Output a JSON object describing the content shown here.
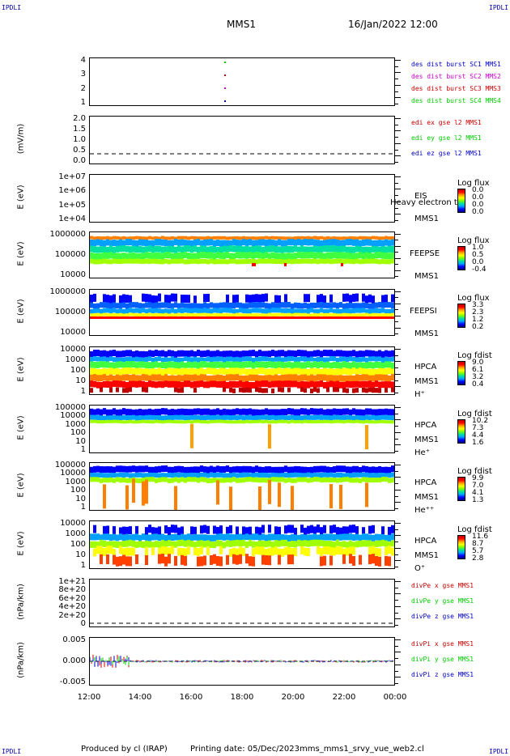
{
  "corners": {
    "tl": "IPDLI",
    "tr": "IPDLI",
    "bl": "IPDLI",
    "br": "IPDLI"
  },
  "header": {
    "spacecraft": "MMS1",
    "date": "16/Jan/2022 12:00"
  },
  "x_ticks": [
    "12:00",
    "14:00",
    "16:00",
    "18:00",
    "20:00",
    "22:00",
    "00:00"
  ],
  "panels": [
    {
      "id": "burst",
      "ylabel": "",
      "ticks": [
        "4",
        "3",
        "2",
        "1"
      ],
      "legend": [
        {
          "text": "des dist burst SC1 MMS1",
          "color": "#0000cc"
        },
        {
          "text": "des dist burst SC2 MMS2",
          "color": "#cc00cc"
        },
        {
          "text": "des dist burst SC3 MMS3",
          "color": "#cc0000"
        },
        {
          "text": "des dist burst SC4 MMS4",
          "color": "#00cc00"
        }
      ]
    },
    {
      "id": "edi",
      "ylabel": "(mV/m)",
      "ticks": [
        "2.0",
        "1.5",
        "1.0",
        "0.5",
        "0.0"
      ],
      "legend": [
        {
          "text": "edi ex gse l2 MMS1",
          "color": "#cc0000"
        },
        {
          "text": "edi ey gse l2 MMS1",
          "color": "#00cc00"
        },
        {
          "text": "edi ez gse l2 MMS1",
          "color": "#0000cc"
        }
      ]
    },
    {
      "id": "eis",
      "ylabel": "E (eV)",
      "ticks": [
        "1e+07",
        "1e+06",
        "1e+05",
        "1e+04"
      ],
      "inst": [
        "EIS",
        "MMS1"
      ],
      "overlay": "Heavy electron to",
      "cb": {
        "title": "Log flux",
        "vals": [
          "0.0",
          "0.0",
          "0.0",
          "0.0"
        ]
      }
    },
    {
      "id": "feepse",
      "ylabel": "E (eV)",
      "ticks": [
        "1000000",
        "100000",
        "10000"
      ],
      "inst": [
        "FEEPSE",
        "MMS1"
      ],
      "cb": {
        "title": "Log flux",
        "vals": [
          "1.0",
          "0.5",
          "0.0",
          "-0.4"
        ]
      }
    },
    {
      "id": "feepsi",
      "ylabel": "E (eV)",
      "ticks": [
        "1000000",
        "100000",
        "10000"
      ],
      "inst": [
        "FEEPSI",
        "MMS1"
      ],
      "cb": {
        "title": "Log flux",
        "vals": [
          "3.3",
          "2.3",
          "1.2",
          "0.2"
        ]
      }
    },
    {
      "id": "hpca-h",
      "ylabel": "E (eV)",
      "ticks": [
        "10000",
        "1000",
        "100",
        "10",
        "1"
      ],
      "inst": [
        "HPCA",
        "MMS1",
        "H⁺"
      ],
      "cb": {
        "title": "Log fdist",
        "vals": [
          "9.0",
          "6.1",
          "3.2",
          "0.4"
        ]
      }
    },
    {
      "id": "hpca-he",
      "ylabel": "E (eV)",
      "ticks": [
        "100000",
        "10000",
        "1000",
        "100",
        "10",
        "1"
      ],
      "inst": [
        "HPCA",
        "MMS1",
        "He⁺"
      ],
      "cb": {
        "title": "Log fdist",
        "vals": [
          "10.2",
          "7.3",
          "4.4",
          "1.6"
        ]
      }
    },
    {
      "id": "hpca-hepp",
      "ylabel": "E (eV)",
      "ticks": [
        "100000",
        "10000",
        "1000",
        "100",
        "10",
        "1"
      ],
      "inst": [
        "HPCA",
        "MMS1",
        "He⁺⁺"
      ],
      "cb": {
        "title": "Log fdist",
        "vals": [
          "9.9",
          "7.0",
          "4.1",
          "1.3"
        ]
      }
    },
    {
      "id": "hpca-o",
      "ylabel": "E (eV)",
      "ticks": [
        "10000",
        "1000",
        "100",
        "10",
        "1"
      ],
      "inst": [
        "HPCA",
        "MMS1",
        "O⁺"
      ],
      "cb": {
        "title": "Log fdist",
        "vals": [
          "11.6",
          "8.7",
          "5.7",
          "2.8"
        ]
      }
    },
    {
      "id": "divpe",
      "ylabel": "(nPa/km)",
      "ticks": [
        "1e+21",
        "8e+20",
        "6e+20",
        "4e+20",
        "2e+20",
        "0"
      ],
      "legend": [
        {
          "text": "divPe x gse MMS1",
          "color": "#cc0000"
        },
        {
          "text": "divPe y gse MMS1",
          "color": "#00cc00"
        },
        {
          "text": "divPe z gse MMS1",
          "color": "#0000cc"
        }
      ]
    },
    {
      "id": "divpi",
      "ylabel": "(nPa/km)",
      "ticks": [
        "0.005",
        "0.000",
        "-0.005"
      ],
      "legend": [
        {
          "text": "divPi x gse MMS1",
          "color": "#cc0000"
        },
        {
          "text": "divPi y gse MMS1",
          "color": "#00cc00"
        },
        {
          "text": "divPi z gse MMS1",
          "color": "#0000cc"
        }
      ]
    }
  ],
  "footer": {
    "produced": "Produced by cl (IRAP)",
    "printing": "Printing date: 05/Dec/2023",
    "file": "mms_mms1_srvy_vue_web2.cl"
  },
  "chart_data": {
    "type": "heatmap",
    "title": "MMS1",
    "subtitle": "16/Jan/2022 12:00",
    "x": [
      "12:00",
      "14:00",
      "16:00",
      "18:00",
      "20:00",
      "22:00",
      "00:00"
    ],
    "panels": [
      "des dist burst",
      "edi e gse l2",
      "EIS",
      "FEEPSE",
      "FEEPSI",
      "HPCA H+",
      "HPCA He+",
      "HPCA He++",
      "HPCA O+",
      "divPe gse",
      "divPi gse"
    ]
  }
}
